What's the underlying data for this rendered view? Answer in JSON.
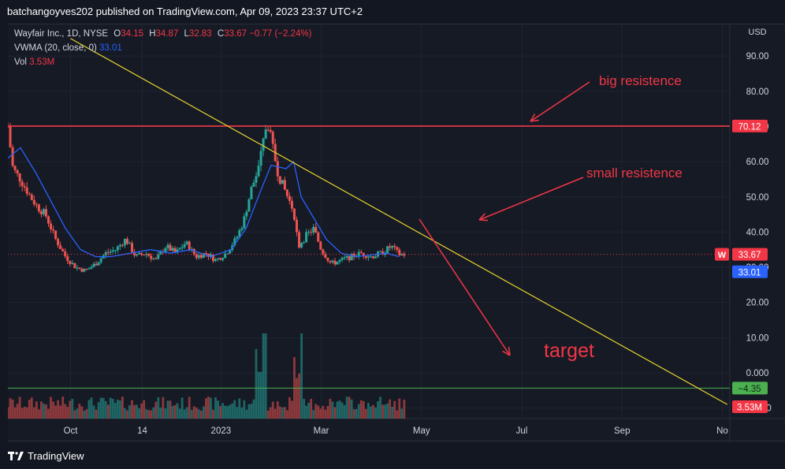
{
  "header": {
    "publish_line": "batchangoyves202 published on TradingView.com, Apr 09, 2023 23:37 UTC+2"
  },
  "legend": {
    "symbol": "Wayfair Inc., 1D, NYSE",
    "open_key": "O",
    "open": "34.15",
    "high_key": "H",
    "high": "34.87",
    "low_key": "L",
    "low": "32.83",
    "close_key": "C",
    "close": "33.67",
    "change": "−0.77 (−2.24%)",
    "vwma_label": "VWMA (20, close, 0)",
    "vwma_value": "33.01",
    "vol_label": "Vol",
    "vol_value": "3.53M"
  },
  "footer": {
    "brand": "TradingView"
  },
  "colors": {
    "up": "#26a69a",
    "down": "#ef5350",
    "vwma": "#2962ff",
    "trendline": "#e8d22e",
    "resistance": "#f23645",
    "target_line": "#4caf50",
    "annotation": "#f23645"
  },
  "chart_data": {
    "type": "candlestick",
    "currency_label": "USD",
    "ylim": [
      -13,
      99
    ],
    "y_ticks": [
      "90.00",
      "80.00",
      "70.00",
      "60.00",
      "50.00",
      "40.00",
      "30.00",
      "20.00",
      "10.00",
      "0.000",
      "−10.00"
    ],
    "y_tick_values": [
      90,
      80,
      70,
      60,
      50,
      40,
      30,
      20,
      10,
      0,
      -10
    ],
    "x_ticks": [
      "Oct",
      "14",
      "2023",
      "Mar",
      "May",
      "Jul",
      "Sep",
      "No"
    ],
    "x_tick_months": [
      9,
      10.43,
      12,
      14,
      16,
      18,
      20,
      22
    ],
    "x_range_months": [
      7.75,
      22.15
    ],
    "last_data_month": 15.7,
    "price_path": [
      [
        7.75,
        70
      ],
      [
        7.85,
        58
      ],
      [
        8.0,
        55
      ],
      [
        8.2,
        50
      ],
      [
        8.35,
        47
      ],
      [
        8.5,
        45
      ],
      [
        8.7,
        38
      ],
      [
        8.9,
        33
      ],
      [
        9.1,
        30
      ],
      [
        9.3,
        29
      ],
      [
        9.5,
        31
      ],
      [
        9.7,
        34
      ],
      [
        9.9,
        35
      ],
      [
        10.1,
        38
      ],
      [
        10.3,
        33
      ],
      [
        10.5,
        34
      ],
      [
        10.7,
        32
      ],
      [
        10.9,
        36
      ],
      [
        11.1,
        34
      ],
      [
        11.3,
        37
      ],
      [
        11.5,
        33
      ],
      [
        11.7,
        34
      ],
      [
        11.9,
        32
      ],
      [
        12.1,
        34
      ],
      [
        12.3,
        38
      ],
      [
        12.45,
        43
      ],
      [
        12.6,
        52
      ],
      [
        12.75,
        58
      ],
      [
        12.85,
        66
      ],
      [
        12.92,
        72
      ],
      [
        13.0,
        66
      ],
      [
        13.15,
        56
      ],
      [
        13.3,
        51
      ],
      [
        13.45,
        46
      ],
      [
        13.55,
        36
      ],
      [
        13.7,
        39
      ],
      [
        13.85,
        41
      ],
      [
        14.0,
        35
      ],
      [
        14.2,
        31
      ],
      [
        14.4,
        32
      ],
      [
        14.6,
        33
      ],
      [
        14.8,
        34
      ],
      [
        15.0,
        33
      ],
      [
        15.2,
        34
      ],
      [
        15.4,
        36
      ],
      [
        15.55,
        33.67
      ]
    ],
    "vwma_path": [
      [
        7.75,
        61
      ],
      [
        8.0,
        64
      ],
      [
        8.3,
        57
      ],
      [
        8.6,
        49
      ],
      [
        8.9,
        41
      ],
      [
        9.2,
        35
      ],
      [
        9.5,
        33
      ],
      [
        9.8,
        33
      ],
      [
        10.2,
        34
      ],
      [
        10.6,
        35
      ],
      [
        11.0,
        34
      ],
      [
        11.4,
        35
      ],
      [
        11.8,
        33
      ],
      [
        12.2,
        35
      ],
      [
        12.5,
        41
      ],
      [
        12.8,
        52
      ],
      [
        13.0,
        59
      ],
      [
        13.3,
        58
      ],
      [
        13.45,
        60
      ],
      [
        13.6,
        50
      ],
      [
        13.85,
        44
      ],
      [
        14.1,
        38
      ],
      [
        14.4,
        34
      ],
      [
        14.7,
        33
      ],
      [
        15.0,
        33.5
      ],
      [
        15.3,
        34
      ],
      [
        15.55,
        33.01
      ]
    ],
    "volume_spikes": [
      [
        12.87,
        1.0
      ],
      [
        13.6,
        1.0
      ]
    ],
    "resistance": {
      "value": 70.12,
      "label": "70.12"
    },
    "target": {
      "value": -4.35,
      "label": "−4.35"
    },
    "last_price": {
      "value": 33.67,
      "label": "33.67",
      "badge": "W"
    },
    "vwma_last": {
      "value": 33.01,
      "label": "33.01"
    },
    "volume_last": {
      "label": "3.53M"
    },
    "trendline": [
      [
        9.0,
        95
      ],
      [
        22.1,
        -9
      ]
    ],
    "annotations": {
      "big_resistance": "big resistence",
      "small_resistance": "small resistence",
      "target": "target"
    }
  }
}
